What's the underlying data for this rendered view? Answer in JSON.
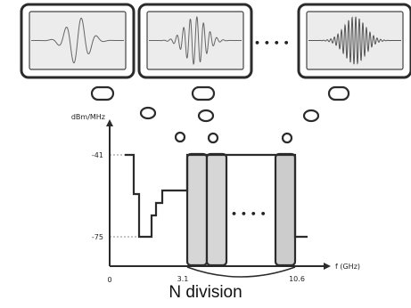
{
  "ylabel": "dBm/MHz",
  "xlabel": "f (GHz)",
  "y_ticks": [
    "-41",
    "-75"
  ],
  "x_ticks": [
    "0",
    "3.1",
    "10.6"
  ],
  "ellipsis": "• • • •",
  "caption": "N division",
  "panels": [
    {
      "name": "left-waveform",
      "oscillations": 6
    },
    {
      "name": "middle-waveform",
      "oscillations": 14
    },
    {
      "name": "right-waveform",
      "oscillations": 26
    }
  ],
  "colors": {
    "panel_fill": "#ececec",
    "band_fill": "#d6d6d6",
    "stroke": "#2b2b2b"
  }
}
